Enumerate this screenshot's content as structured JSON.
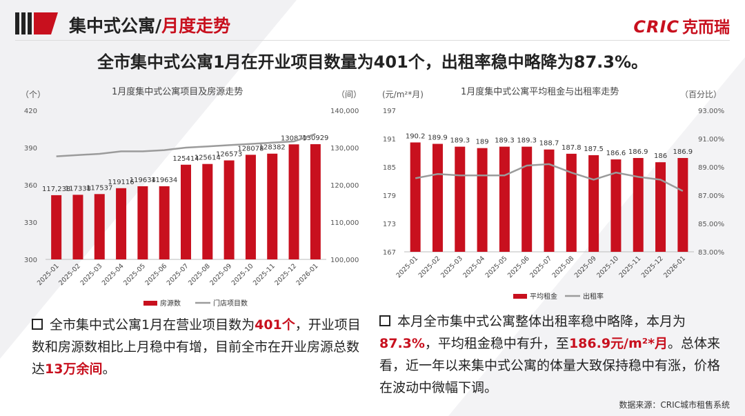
{
  "header": {
    "title_main": "集中式公寓/",
    "title_sub": "月度走势",
    "brand_en": "CRIC",
    "brand_cn": "克而瑞"
  },
  "headline": "全市集中式公寓1月在开业项目数量为401个，出租率稳中略降为87.3%。",
  "left_text": {
    "parts": [
      "全市集中式公寓1月在营业项目数为",
      "401个",
      "，开业项目数和房源数相比上月稳中有增，目前全市在开业房源总数达",
      "13万余间",
      "。"
    ]
  },
  "right_text": {
    "parts": [
      "本月全市集中式公寓整体出租率稳中略降，本月为",
      "87.3%",
      "，平均租金稳中有升，至",
      "186.9元/m²*月",
      "。总体来看，近一年以来集中式公寓的体量大致保持稳中有涨，价格在波动中微幅下调。"
    ]
  },
  "source": "数据来源：CRIC城市租售系统",
  "colors": {
    "red": "#c8101e",
    "gray_line": "#9b9b9b"
  },
  "chart_data": [
    {
      "type": "bar",
      "title": "1月度集中式公寓项目及房源走势",
      "left_unit": "（个）",
      "right_unit": "（间）",
      "categories": [
        "2025-01",
        "2025-02",
        "2025-03",
        "2025-04",
        "2025-05",
        "2025-06",
        "2025-07",
        "2025-08",
        "2025-09",
        "2025-10",
        "2025-11",
        "2025-12",
        "2026-01"
      ],
      "series": [
        {
          "name": "房源数",
          "kind": "bar",
          "axis": "right",
          "values": [
            117238,
            117338,
            117537,
            119116,
            119634,
            119634,
            125414,
            125614,
            126573,
            128078,
            128382,
            130879,
            130929
          ],
          "labels": [
            "117,238",
            "117338",
            "117537",
            "119116",
            "119634",
            "119634",
            "125414",
            "125614",
            "126573",
            "128078",
            "128382",
            "130879",
            "130929"
          ]
        },
        {
          "name": "门店项目数",
          "kind": "line",
          "axis": "left",
          "values": [
            383,
            384,
            385,
            387,
            387,
            388,
            390,
            391,
            392,
            393,
            394,
            395,
            401
          ]
        }
      ],
      "left_axis": {
        "ticks": [
          "420",
          "390",
          "360",
          "330",
          "300"
        ],
        "min": 300,
        "max": 420
      },
      "right_axis": {
        "ticks": [
          "140,000",
          "130,000",
          "120,000",
          "110,000",
          "100,000"
        ],
        "min": 100000,
        "max": 140000
      }
    },
    {
      "type": "bar",
      "title": "1月度集中式公寓平均租金与出租率走势",
      "left_unit": "(元/m²*月)",
      "right_unit": "（百分比）",
      "categories": [
        "2025-01",
        "2025-02",
        "2025-03",
        "2025-04",
        "2025-05",
        "2025-06",
        "2025-07",
        "2025-08",
        "2025-09",
        "2025-10",
        "2025-11",
        "2025-12",
        "2026-01"
      ],
      "series": [
        {
          "name": "平均租金",
          "kind": "bar",
          "axis": "left",
          "values": [
            190.2,
            189.9,
            189.3,
            189,
            189.3,
            189.3,
            188.7,
            187.8,
            187.5,
            186.6,
            186.9,
            186,
            186.9
          ],
          "labels": [
            "190.2",
            "189.9",
            "189.3",
            "189",
            "189.3",
            "189.3",
            "188.7",
            "187.8",
            "187.5",
            "186.6",
            "186.9",
            "186",
            "186.9"
          ]
        },
        {
          "name": "出租率",
          "kind": "line",
          "axis": "right",
          "values": [
            88.2,
            88.5,
            88.4,
            88.4,
            88.4,
            89.1,
            89.2,
            88.6,
            88.1,
            88.6,
            88.3,
            88.1,
            87.3
          ]
        }
      ],
      "left_axis": {
        "ticks": [
          "197",
          "191",
          "185",
          "179",
          "173",
          "167"
        ],
        "min": 167,
        "max": 197
      },
      "right_axis": {
        "ticks": [
          "93.00%",
          "91.00%",
          "89.00%",
          "87.00%",
          "85.00%",
          "83.00%"
        ],
        "min": 83,
        "max": 93
      }
    }
  ]
}
